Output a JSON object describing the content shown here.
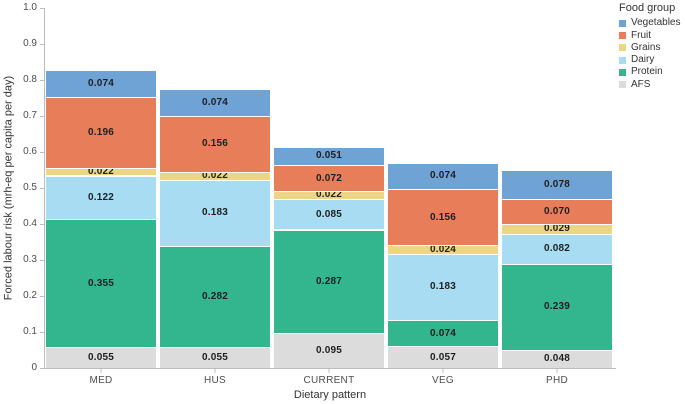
{
  "chart_data": {
    "type": "bar",
    "stacked": true,
    "xlabel": "Dietary pattern",
    "ylabel": "Forced labour risk (mrh-eq per capita per day)",
    "ylim": [
      0,
      1.0
    ],
    "yticks": [
      "0",
      "0.1",
      "0.2",
      "0.3",
      "0.4",
      "0.5",
      "0.6",
      "0.7",
      "0.8",
      "0.9",
      "1.0"
    ],
    "grid": false,
    "categories": [
      "MED",
      "HUS",
      "CURRENT",
      "VEG",
      "PHD"
    ],
    "stack_order_bottom_to_top": [
      "AFS",
      "Protein",
      "Dairy",
      "Grains",
      "Fruit",
      "Vegetables"
    ],
    "series": [
      {
        "name": "Vegetables",
        "color": "#6fa2d5",
        "values": [
          0.074,
          0.074,
          0.051,
          0.074,
          0.078
        ],
        "labels": [
          "0.074",
          "0.074",
          "0.051",
          "0.074",
          "0.078"
        ]
      },
      {
        "name": "Fruit",
        "color": "#e87d5a",
        "values": [
          0.196,
          0.156,
          0.072,
          0.156,
          0.07
        ],
        "labels": [
          "0.196",
          "0.156",
          "0.072",
          "0.156",
          "0.070"
        ]
      },
      {
        "name": "Grains",
        "color": "#ecd685",
        "values": [
          0.022,
          0.022,
          0.022,
          0.024,
          0.029
        ],
        "labels": [
          "0.022",
          "0.022",
          "0.022",
          "0.024",
          "0.029"
        ]
      },
      {
        "name": "Dairy",
        "color": "#a8dcf3",
        "values": [
          0.122,
          0.183,
          0.085,
          0.183,
          0.082
        ],
        "labels": [
          "0.122",
          "0.183",
          "0.085",
          "0.183",
          "0.082"
        ]
      },
      {
        "name": "Protein",
        "color": "#33b68e",
        "values": [
          0.355,
          0.282,
          0.287,
          0.074,
          0.239
        ],
        "labels": [
          "0.355",
          "0.282",
          "0.287",
          "0.074",
          "0.239"
        ]
      },
      {
        "name": "AFS",
        "color": "#dcdcdc",
        "values": [
          0.055,
          0.055,
          0.095,
          0.057,
          0.048
        ],
        "labels": [
          "0.055",
          "0.055",
          "0.095",
          "0.057",
          "0.048"
        ]
      }
    ],
    "legend": {
      "title": "Food group",
      "position": "top-right"
    },
    "bar_totals": [
      0.824,
      0.772,
      0.612,
      0.568,
      0.546
    ]
  }
}
